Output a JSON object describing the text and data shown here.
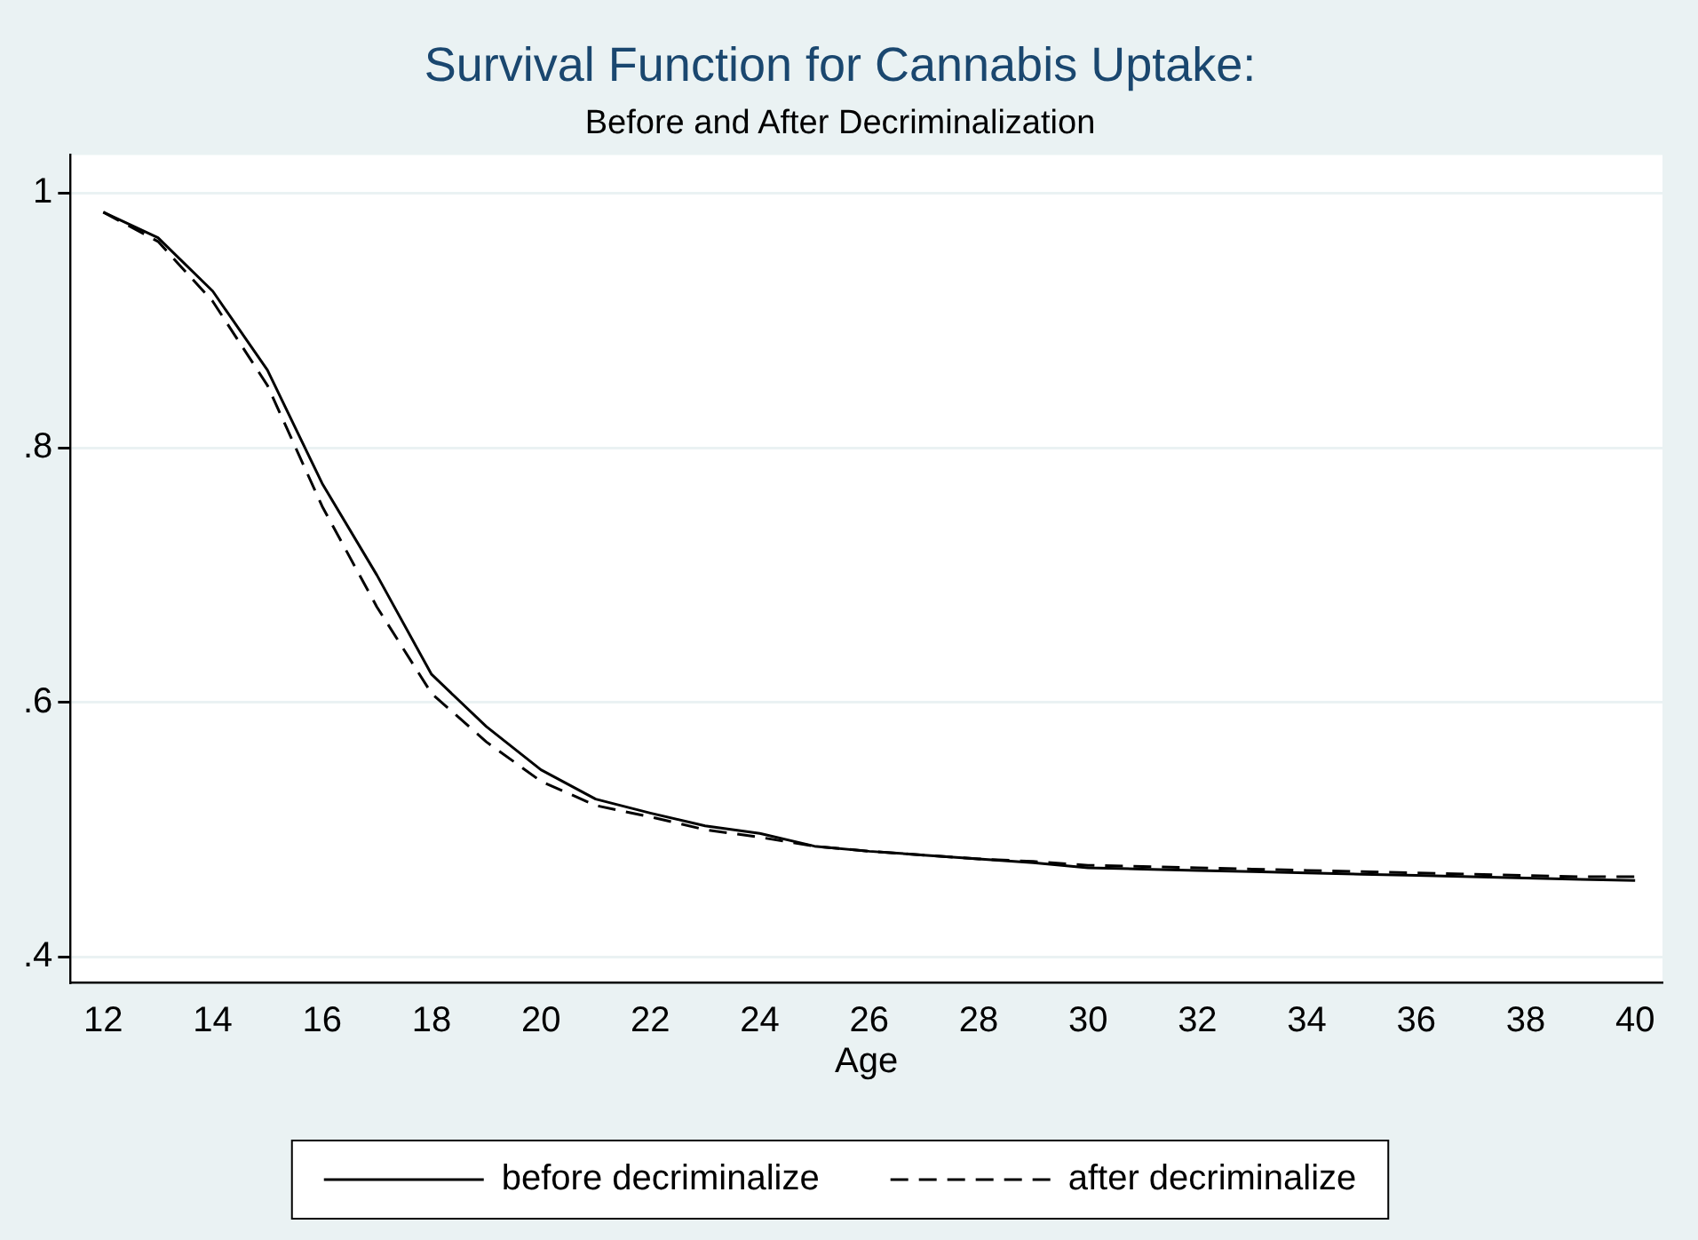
{
  "chart_data": {
    "type": "line",
    "title": "Survival Function for Cannabis Uptake:",
    "subtitle": "Before and After Decriminalization",
    "xlabel": "Age",
    "x": [
      12,
      13,
      14,
      15,
      16,
      17,
      18,
      19,
      20,
      21,
      22,
      23,
      24,
      25,
      26,
      27,
      28,
      29,
      30,
      31,
      32,
      33,
      34,
      35,
      36,
      37,
      38,
      39,
      40
    ],
    "series": [
      {
        "name": "before decriminalize",
        "color": "#000000",
        "line_style": "solid",
        "values": [
          0.985,
          0.965,
          0.923,
          0.861,
          0.772,
          0.7,
          0.622,
          0.581,
          0.547,
          0.524,
          0.513,
          0.503,
          0.497,
          0.487,
          0.483,
          0.48,
          0.477,
          0.474,
          0.47,
          0.469,
          0.468,
          0.467,
          0.466,
          0.465,
          0.464,
          0.463,
          0.462,
          0.461,
          0.46
        ]
      },
      {
        "name": "after decriminalize",
        "color": "#000000",
        "line_style": "dashed",
        "values": [
          0.985,
          0.962,
          0.915,
          0.849,
          0.754,
          0.675,
          0.607,
          0.569,
          0.538,
          0.519,
          0.51,
          0.5,
          0.494,
          0.487,
          0.483,
          0.48,
          0.477,
          0.475,
          0.472,
          0.471,
          0.47,
          0.469,
          0.468,
          0.467,
          0.466,
          0.465,
          0.464,
          0.463,
          0.463
        ]
      }
    ],
    "xlim": [
      11.4,
      40.5
    ],
    "xticks": [
      12,
      14,
      16,
      18,
      20,
      22,
      24,
      26,
      28,
      30,
      32,
      34,
      36,
      38,
      40
    ],
    "ylim": [
      0.38,
      1.03
    ],
    "yticks": [
      {
        "value": 0.4,
        "label": ".4"
      },
      {
        "value": 0.6,
        "label": ".6"
      },
      {
        "value": 0.8,
        "label": ".8"
      },
      {
        "value": 1,
        "label": "1"
      }
    ],
    "grid": "y",
    "legend": "bottom",
    "marker": "none"
  }
}
